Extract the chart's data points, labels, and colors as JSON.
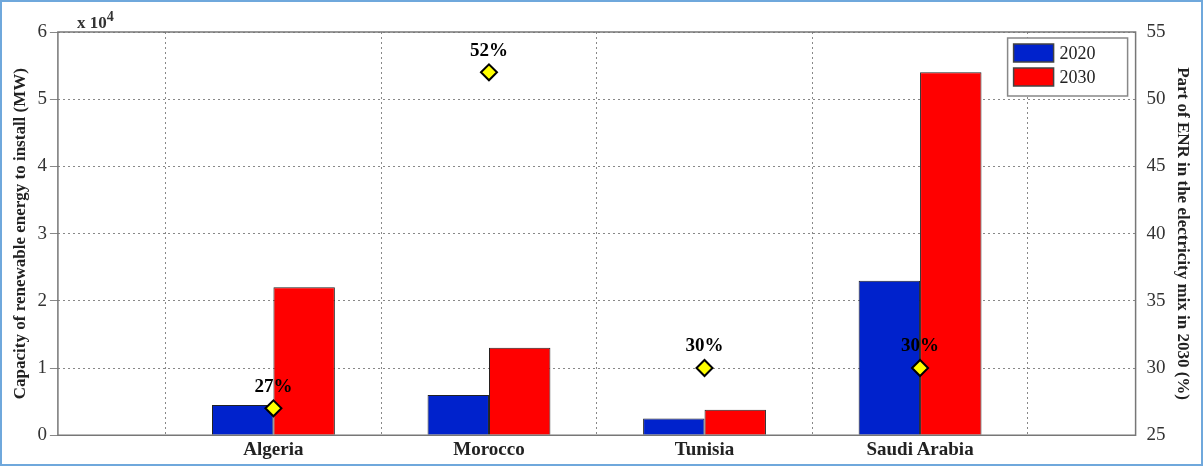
{
  "chart_data": {
    "type": "bar",
    "categories": [
      "Algeria",
      "Morocco",
      "Tunisia",
      "Saudi Arabia"
    ],
    "ylabel": "Capacity of renewable energy to install (MW)",
    "y2label": "Part of ENR in the electricity mix in 2030 (%)",
    "annotations": [
      "x 10$^{4}$"
    ],
    "series": [
      {
        "name": "2020",
        "color": "#0022cc",
        "values": [
          0.45,
          0.6,
          0.25,
          2.3
        ]
      },
      {
        "name": "2030",
        "color": "#ff0000",
        "values": [
          2.2,
          1.3,
          0.38,
          5.4
        ]
      },
      {
        "type": "scatter",
        "axis": "y2",
        "color": "#ffff00",
        "marker": "diamond",
        "x": [
          "Algeria",
          "Morocco",
          "Tunisia",
          "Saudi Arabia"
        ],
        "values": [
          27,
          52,
          30,
          30
        ],
        "value_labels": [
          "27%",
          "52%",
          "30%",
          "30%"
        ]
      }
    ],
    "ylim": [
      0,
      6
    ],
    "yticks": [
      0,
      1,
      2,
      3,
      4,
      5,
      6
    ],
    "y2lim": [
      25,
      55
    ],
    "y2ticks": [
      25,
      30,
      35,
      40,
      45,
      50,
      55
    ],
    "grid": true,
    "legend": "top right"
  }
}
